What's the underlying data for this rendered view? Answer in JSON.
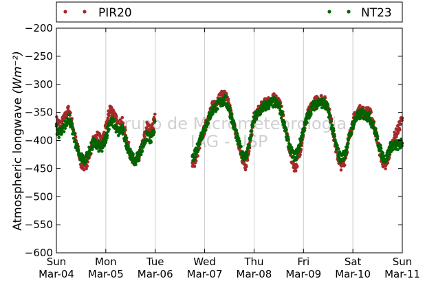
{
  "chart_data": {
    "type": "scatter",
    "title": "",
    "xlabel": "",
    "ylabel": "Atmospheric longwave",
    "ylabel_unit": "(Wm⁻²)",
    "ylim": [
      -600,
      -200
    ],
    "yticks": [
      -200,
      -250,
      -300,
      -350,
      -400,
      -450,
      -500,
      -550,
      -600
    ],
    "x_range_days": [
      "Sun Mar-04",
      "Sun Mar-11"
    ],
    "xticks": [
      {
        "day": "Sun",
        "date": "Mar-04"
      },
      {
        "day": "Mon",
        "date": "Mar-05"
      },
      {
        "day": "Tue",
        "date": "Mar-06"
      },
      {
        "day": "Wed",
        "date": "Mar-07"
      },
      {
        "day": "Thu",
        "date": "Mar-08"
      },
      {
        "day": "Fri",
        "date": "Mar-09"
      },
      {
        "day": "Sat",
        "date": "Mar-10"
      },
      {
        "day": "Sun",
        "date": "Mar-11"
      }
    ],
    "grid": "vertical",
    "legend_position": "top",
    "watermark": [
      "Grupo de Micrometeorologia",
      "IAG - USP"
    ],
    "series": [
      {
        "name": "PIR20",
        "color": "#a52a2a",
        "points": [
          [
            "Mar-04 00:00",
            -365
          ],
          [
            "Mar-04 02:00",
            -372
          ],
          [
            "Mar-04 04:00",
            -360
          ],
          [
            "Mar-04 06:00",
            -345
          ],
          [
            "Mar-04 08:00",
            -375
          ],
          [
            "Mar-04 10:00",
            -410
          ],
          [
            "Mar-04 12:00",
            -440
          ],
          [
            "Mar-04 14:00",
            -448
          ],
          [
            "Mar-04 16:00",
            -425
          ],
          [
            "Mar-04 18:00",
            -400
          ],
          [
            "Mar-04 20:00",
            -392
          ],
          [
            "Mar-04 22:00",
            -402
          ],
          [
            "Mar-05 00:00",
            -380
          ],
          [
            "Mar-05 02:00",
            -342
          ],
          [
            "Mar-05 04:00",
            -352
          ],
          [
            "Mar-05 06:00",
            -375
          ],
          [
            "Mar-05 08:00",
            -368
          ],
          [
            "Mar-05 10:00",
            -395
          ],
          [
            "Mar-05 12:00",
            -425
          ],
          [
            "Mar-05 14:00",
            -442
          ],
          [
            "Mar-05 16:00",
            -430
          ],
          [
            "Mar-05 18:00",
            -405
          ],
          [
            "Mar-05 20:00",
            -375
          ],
          [
            "Mar-05 22:00",
            -385
          ],
          [
            "Mar-06 00:00",
            -355
          ],
          [
            "Mar-06 18:00",
            -448
          ],
          [
            "Mar-06 20:00",
            -430
          ],
          [
            "Mar-06 22:00",
            -400
          ],
          [
            "Mar-07 00:00",
            -380
          ],
          [
            "Mar-07 02:00",
            -355
          ],
          [
            "Mar-07 04:00",
            -338
          ],
          [
            "Mar-07 06:00",
            -328
          ],
          [
            "Mar-07 08:00",
            -322
          ],
          [
            "Mar-07 10:00",
            -318
          ],
          [
            "Mar-07 12:00",
            -340
          ],
          [
            "Mar-07 14:00",
            -370
          ],
          [
            "Mar-07 16:00",
            -400
          ],
          [
            "Mar-07 18:00",
            -430
          ],
          [
            "Mar-07 20:00",
            -445
          ],
          [
            "Mar-07 22:00",
            -405
          ],
          [
            "Mar-08 00:00",
            -360
          ],
          [
            "Mar-08 02:00",
            -348
          ],
          [
            "Mar-08 04:00",
            -338
          ],
          [
            "Mar-08 06:00",
            -332
          ],
          [
            "Mar-08 08:00",
            -328
          ],
          [
            "Mar-08 10:00",
            -325
          ],
          [
            "Mar-08 12:00",
            -330
          ],
          [
            "Mar-08 14:00",
            -355
          ],
          [
            "Mar-08 16:00",
            -395
          ],
          [
            "Mar-08 18:00",
            -430
          ],
          [
            "Mar-08 20:00",
            -450
          ],
          [
            "Mar-08 22:00",
            -425
          ],
          [
            "Mar-09 00:00",
            -385
          ],
          [
            "Mar-09 02:00",
            -355
          ],
          [
            "Mar-09 04:00",
            -338
          ],
          [
            "Mar-09 06:00",
            -330
          ],
          [
            "Mar-09 08:00",
            -325
          ],
          [
            "Mar-09 10:00",
            -328
          ],
          [
            "Mar-09 12:00",
            -340
          ],
          [
            "Mar-09 14:00",
            -375
          ],
          [
            "Mar-09 16:00",
            -420
          ],
          [
            "Mar-09 18:00",
            -445
          ],
          [
            "Mar-09 20:00",
            -435
          ],
          [
            "Mar-09 22:00",
            -400
          ],
          [
            "Mar-10 00:00",
            -365
          ],
          [
            "Mar-10 02:00",
            -350
          ],
          [
            "Mar-10 04:00",
            -345
          ],
          [
            "Mar-10 06:00",
            -350
          ],
          [
            "Mar-10 08:00",
            -348
          ],
          [
            "Mar-10 10:00",
            -368
          ],
          [
            "Mar-10 12:00",
            -400
          ],
          [
            "Mar-10 14:00",
            -435
          ],
          [
            "Mar-10 16:00",
            -448
          ],
          [
            "Mar-10 18:00",
            -420
          ],
          [
            "Mar-10 20:00",
            -395
          ],
          [
            "Mar-10 22:00",
            -380
          ],
          [
            "Mar-11 00:00",
            -360
          ]
        ]
      },
      {
        "name": "NT23",
        "color": "#006400",
        "points": [
          [
            "Mar-04 00:00",
            -378
          ],
          [
            "Mar-04 02:00",
            -390
          ],
          [
            "Mar-04 04:00",
            -375
          ],
          [
            "Mar-04 06:00",
            -355
          ],
          [
            "Mar-04 08:00",
            -385
          ],
          [
            "Mar-04 10:00",
            -415
          ],
          [
            "Mar-04 12:00",
            -430
          ],
          [
            "Mar-04 14:00",
            -435
          ],
          [
            "Mar-04 16:00",
            -418
          ],
          [
            "Mar-04 18:00",
            -405
          ],
          [
            "Mar-04 20:00",
            -410
          ],
          [
            "Mar-04 22:00",
            -415
          ],
          [
            "Mar-05 00:00",
            -395
          ],
          [
            "Mar-05 02:00",
            -365
          ],
          [
            "Mar-05 04:00",
            -370
          ],
          [
            "Mar-05 06:00",
            -385
          ],
          [
            "Mar-05 08:00",
            -380
          ],
          [
            "Mar-05 10:00",
            -405
          ],
          [
            "Mar-05 12:00",
            -425
          ],
          [
            "Mar-05 14:00",
            -438
          ],
          [
            "Mar-05 16:00",
            -425
          ],
          [
            "Mar-05 18:00",
            -410
          ],
          [
            "Mar-05 20:00",
            -390
          ],
          [
            "Mar-05 22:00",
            -400
          ],
          [
            "Mar-06 00:00",
            -370
          ],
          [
            "Mar-06 18:00",
            -435
          ],
          [
            "Mar-06 20:00",
            -420
          ],
          [
            "Mar-06 22:00",
            -395
          ],
          [
            "Mar-07 00:00",
            -378
          ],
          [
            "Mar-07 02:00",
            -360
          ],
          [
            "Mar-07 04:00",
            -345
          ],
          [
            "Mar-07 06:00",
            -338
          ],
          [
            "Mar-07 08:00",
            -332
          ],
          [
            "Mar-07 10:00",
            -328
          ],
          [
            "Mar-07 12:00",
            -345
          ],
          [
            "Mar-07 14:00",
            -372
          ],
          [
            "Mar-07 16:00",
            -398
          ],
          [
            "Mar-07 18:00",
            -422
          ],
          [
            "Mar-07 20:00",
            -430
          ],
          [
            "Mar-07 22:00",
            -400
          ],
          [
            "Mar-08 00:00",
            -362
          ],
          [
            "Mar-08 02:00",
            -352
          ],
          [
            "Mar-08 04:00",
            -342
          ],
          [
            "Mar-08 06:00",
            -338
          ],
          [
            "Mar-08 08:00",
            -334
          ],
          [
            "Mar-08 10:00",
            -332
          ],
          [
            "Mar-08 12:00",
            -338
          ],
          [
            "Mar-08 14:00",
            -360
          ],
          [
            "Mar-08 16:00",
            -395
          ],
          [
            "Mar-08 18:00",
            -420
          ],
          [
            "Mar-08 20:00",
            -430
          ],
          [
            "Mar-08 22:00",
            -410
          ],
          [
            "Mar-09 00:00",
            -380
          ],
          [
            "Mar-09 02:00",
            -358
          ],
          [
            "Mar-09 04:00",
            -342
          ],
          [
            "Mar-09 06:00",
            -335
          ],
          [
            "Mar-09 08:00",
            -332
          ],
          [
            "Mar-09 10:00",
            -335
          ],
          [
            "Mar-09 12:00",
            -345
          ],
          [
            "Mar-09 14:00",
            -378
          ],
          [
            "Mar-09 16:00",
            -412
          ],
          [
            "Mar-09 18:00",
            -432
          ],
          [
            "Mar-09 20:00",
            -425
          ],
          [
            "Mar-09 22:00",
            -398
          ],
          [
            "Mar-10 00:00",
            -372
          ],
          [
            "Mar-10 02:00",
            -358
          ],
          [
            "Mar-10 04:00",
            -352
          ],
          [
            "Mar-10 06:00",
            -355
          ],
          [
            "Mar-10 08:00",
            -358
          ],
          [
            "Mar-10 10:00",
            -375
          ],
          [
            "Mar-10 12:00",
            -400
          ],
          [
            "Mar-10 14:00",
            -425
          ],
          [
            "Mar-10 16:00",
            -435
          ],
          [
            "Mar-10 18:00",
            -412
          ],
          [
            "Mar-10 20:00",
            -410
          ],
          [
            "Mar-10 22:00",
            -408
          ],
          [
            "Mar-11 00:00",
            -405
          ]
        ]
      }
    ]
  }
}
